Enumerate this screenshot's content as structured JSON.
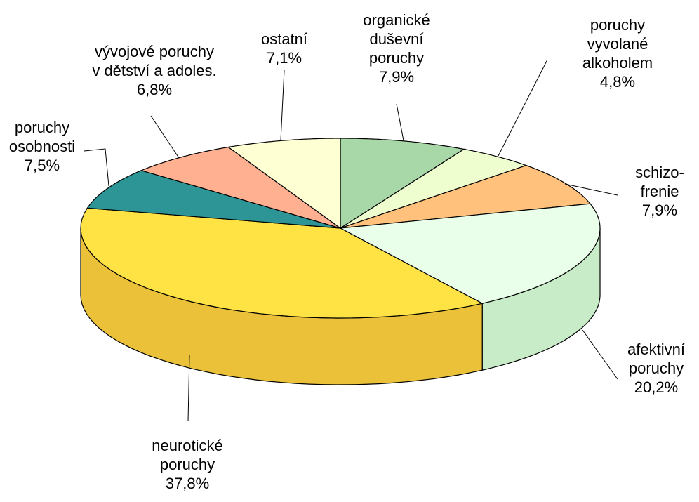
{
  "chart_data": {
    "type": "pie3d",
    "categories": [
      "organické\nduševní\nporuchy",
      "poruchy\nvyvolané\nalkoholem",
      "schizo-\nfrenie",
      "afektivní\nporuchy",
      "neurotické\nporuchy",
      "poruchy\nosobnosti",
      "vývojové poruchy\nv dětství a adoles.",
      "ostatní"
    ],
    "values": [
      7.9,
      4.8,
      7.9,
      20.2,
      37.8,
      7.5,
      6.8,
      7.1
    ],
    "value_labels": [
      "7,9%",
      "4,8%",
      "7,9%",
      "20,2%",
      "37,8%",
      "7,5%",
      "6,8%",
      "7,1%"
    ],
    "colors": [
      "#9cc79c",
      "#dcebbf",
      "#ffb372",
      "#d9ffd9",
      "#ffd23f",
      "#2a8a8a",
      "#f5a385",
      "#ffffc4"
    ]
  }
}
